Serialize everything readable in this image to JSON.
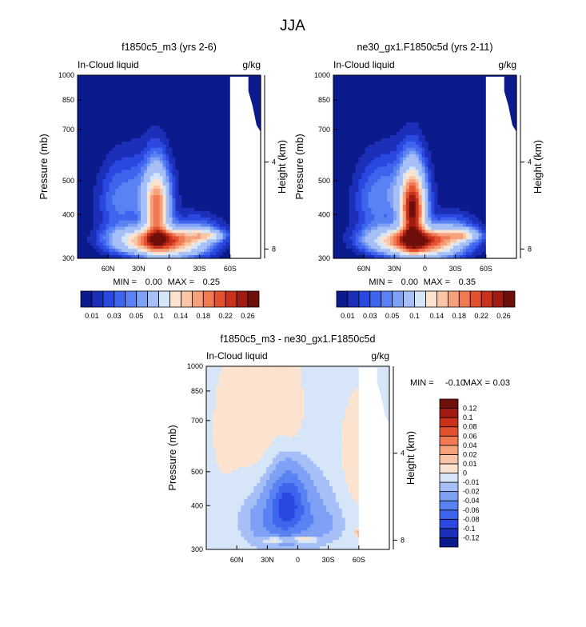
{
  "figure_title": "JJA",
  "chart_data": [
    {
      "type": "heatmap",
      "title": "f1850c5_m3 (yrs 2-6)",
      "left_label": "In-Cloud liquid",
      "units": "g/kg",
      "xlabel": "",
      "ylabel": "Pressure (mb)",
      "ylabel_right": "Height (km)",
      "x_ticks": [
        "60N",
        "30N",
        "0",
        "30S",
        "60S"
      ],
      "x_tick_values": [
        60,
        30,
        0,
        -30,
        -60
      ],
      "y_ticks": [
        "300",
        "400",
        "500",
        "700",
        "850",
        "1000"
      ],
      "y_tick_values": [
        300,
        400,
        500,
        700,
        850,
        1000
      ],
      "y_right_ticks": [
        "8",
        "4"
      ],
      "y_right_tick_values": [
        8,
        4
      ],
      "xlim": [
        90,
        -90
      ],
      "ylim": [
        1000,
        300
      ],
      "stats": {
        "min_label": "MIN =",
        "min": "0.00",
        "max_label": "MAX =",
        "max": "0.25"
      },
      "colorbar": {
        "orientation": "horizontal",
        "levels": [
          "0.01",
          "0.02",
          "0.03",
          "0.04",
          "0.05",
          "0.06",
          "0.1",
          "0.12",
          "0.14",
          "0.16",
          "0.18",
          "0.2",
          "0.22",
          "0.24",
          "0.26"
        ],
        "labels": [
          "0.01",
          "0.03",
          "0.05",
          "0.1",
          "0.14",
          "0.18",
          "0.22",
          "0.26"
        ],
        "colors": [
          "#0b1b8c",
          "#1b2fb8",
          "#2a48e0",
          "#3f64ee",
          "#5b82f3",
          "#7ea0f5",
          "#a6c0f7",
          "#d6e6f8",
          "#fbe3cf",
          "#f8c6a6",
          "#f5a27c",
          "#f17a55",
          "#e4512f",
          "#c8321b",
          "#a01c12",
          "#6e0f0a"
        ]
      },
      "features": [
        {
          "lat": 10,
          "p": 930,
          "sx": 24,
          "sp": 45,
          "v": 0.1
        },
        {
          "lat": 33,
          "p": 880,
          "sx": 22,
          "sp": 50,
          "v": 0.07
        },
        {
          "lat": -12,
          "p": 920,
          "sx": 22,
          "sp": 60,
          "v": 0.06
        },
        {
          "lat": 12,
          "p": 730,
          "sx": 8,
          "sp": 120,
          "v": 0.18
        },
        {
          "lat": 2,
          "p": 870,
          "sx": 22,
          "sp": 35,
          "v": 0.1
        },
        {
          "lat": -38,
          "p": 860,
          "sx": 11,
          "sp": 22,
          "v": 0.08
        },
        {
          "lat": -28,
          "p": 830,
          "sx": 17,
          "sp": 60,
          "v": 0.04
        },
        {
          "lat": 52,
          "p": 700,
          "sx": 14,
          "sp": 120,
          "v": 0.03
        },
        {
          "lat": 25,
          "p": 640,
          "sx": 20,
          "sp": 110,
          "v": 0.035
        }
      ]
    },
    {
      "type": "heatmap",
      "title": "ne30_gx1.F1850c5d (yrs 2-11)",
      "left_label": "In-Cloud liquid",
      "units": "g/kg",
      "xlabel": "",
      "ylabel": "Pressure (mb)",
      "ylabel_right": "Height (km)",
      "x_ticks": [
        "60N",
        "30N",
        "0",
        "30S",
        "60S"
      ],
      "x_tick_values": [
        60,
        30,
        0,
        -30,
        -60
      ],
      "y_ticks": [
        "300",
        "400",
        "500",
        "700",
        "850",
        "1000"
      ],
      "y_tick_values": [
        300,
        400,
        500,
        700,
        850,
        1000
      ],
      "y_right_ticks": [
        "8",
        "4"
      ],
      "y_right_tick_values": [
        8,
        4
      ],
      "xlim": [
        90,
        -90
      ],
      "ylim": [
        1000,
        300
      ],
      "stats": {
        "min_label": "MIN =",
        "min": "0.00",
        "max_label": "MAX =",
        "max": "0.35"
      },
      "colorbar": {
        "orientation": "horizontal",
        "levels": [
          "0.01",
          "0.02",
          "0.03",
          "0.04",
          "0.05",
          "0.06",
          "0.1",
          "0.12",
          "0.14",
          "0.16",
          "0.18",
          "0.2",
          "0.22",
          "0.24",
          "0.26"
        ],
        "labels": [
          "0.01",
          "0.03",
          "0.05",
          "0.1",
          "0.14",
          "0.18",
          "0.22",
          "0.26"
        ],
        "colors": [
          "#0b1b8c",
          "#1b2fb8",
          "#2a48e0",
          "#3f64ee",
          "#5b82f3",
          "#7ea0f5",
          "#a6c0f7",
          "#d6e6f8",
          "#fbe3cf",
          "#f8c6a6",
          "#f5a27c",
          "#f17a55",
          "#e4512f",
          "#c8321b",
          "#a01c12",
          "#6e0f0a"
        ]
      },
      "features": [
        {
          "lat": 10,
          "p": 930,
          "sx": 24,
          "sp": 45,
          "v": 0.11
        },
        {
          "lat": 33,
          "p": 880,
          "sx": 22,
          "sp": 50,
          "v": 0.075
        },
        {
          "lat": -12,
          "p": 920,
          "sx": 22,
          "sp": 60,
          "v": 0.065
        },
        {
          "lat": 12,
          "p": 730,
          "sx": 8,
          "sp": 120,
          "v": 0.25
        },
        {
          "lat": 2,
          "p": 870,
          "sx": 22,
          "sp": 35,
          "v": 0.11
        },
        {
          "lat": -38,
          "p": 860,
          "sx": 11,
          "sp": 22,
          "v": 0.085
        },
        {
          "lat": -28,
          "p": 830,
          "sx": 17,
          "sp": 60,
          "v": 0.045
        },
        {
          "lat": 52,
          "p": 700,
          "sx": 14,
          "sp": 120,
          "v": 0.03
        },
        {
          "lat": 25,
          "p": 640,
          "sx": 20,
          "sp": 110,
          "v": 0.04
        }
      ]
    },
    {
      "type": "heatmap",
      "title": "f1850c5_m3 - ne30_gx1.F1850c5d",
      "left_label": "In-Cloud liquid",
      "units": "g/kg",
      "xlabel": "",
      "ylabel": "Pressure (mb)",
      "ylabel_right": "Height (km)",
      "x_ticks": [
        "60N",
        "30N",
        "0",
        "30S",
        "60S"
      ],
      "x_tick_values": [
        60,
        30,
        0,
        -30,
        -60
      ],
      "y_ticks": [
        "300",
        "400",
        "500",
        "700",
        "850",
        "1000"
      ],
      "y_tick_values": [
        300,
        400,
        500,
        700,
        850,
        1000
      ],
      "y_right_ticks": [
        "8",
        "4"
      ],
      "y_right_tick_values": [
        8,
        4
      ],
      "xlim": [
        90,
        -90
      ],
      "ylim": [
        1000,
        300
      ],
      "stats": {
        "min_label": "MIN =",
        "min": "-0.10",
        "max_label": "MAX =",
        "max": "0.03"
      },
      "colorbar": {
        "orientation": "vertical",
        "levels": [
          "-0.12",
          "-0.1",
          "-0.08",
          "-0.06",
          "-0.04",
          "-0.02",
          "-0.01",
          "0",
          "0.01",
          "0.02",
          "0.04",
          "0.06",
          "0.08",
          "0.1",
          "0.12"
        ],
        "labels": [
          "-0.12",
          "-0.1",
          "-0.08",
          "-0.06",
          "-0.04",
          "-0.02",
          "-0.01",
          "0",
          "0.01",
          "0.02",
          "0.04",
          "0.06",
          "0.08",
          "0.1",
          "0.12"
        ],
        "colors": [
          "#0b1b8c",
          "#1b2fb8",
          "#2a48e0",
          "#3f64ee",
          "#5b82f3",
          "#7ea0f5",
          "#a6c0f7",
          "#d6e6f8",
          "#fbe3cf",
          "#f8c6a6",
          "#f5a27c",
          "#f17a55",
          "#e4512f",
          "#c8321b",
          "#a01c12",
          "#6e0f0a"
        ]
      },
      "base_value": -0.005,
      "features": [
        {
          "lat": 32,
          "p": 530,
          "sx": 30,
          "sp": 250,
          "v": 0.011
        },
        {
          "lat": -60,
          "p": 560,
          "sx": 14,
          "sp": 160,
          "v": 0.012
        },
        {
          "lat": 72,
          "p": 450,
          "sx": 7,
          "sp": 90,
          "v": 0.009
        },
        {
          "lat": 6,
          "p": 400,
          "sx": 6,
          "sp": 70,
          "v": 0.008
        },
        {
          "lat": -62,
          "p": 900,
          "sx": 4,
          "sp": 18,
          "v": 0.035
        },
        {
          "lat": 10,
          "p": 730,
          "sx": 12,
          "sp": 110,
          "v": -0.06
        },
        {
          "lat": 10,
          "p": 780,
          "sx": 28,
          "sp": 130,
          "v": -0.035
        },
        {
          "lat": 30,
          "p": 850,
          "sx": 14,
          "sp": 70,
          "v": -0.015
        },
        {
          "lat": -22,
          "p": 850,
          "sx": 14,
          "sp": 50,
          "v": -0.012
        },
        {
          "lat": 22,
          "p": 940,
          "sx": 8,
          "sp": 12,
          "v": 0.035
        },
        {
          "lat": -5,
          "p": 935,
          "sx": 9,
          "sp": 12,
          "v": 0.035
        }
      ]
    }
  ]
}
